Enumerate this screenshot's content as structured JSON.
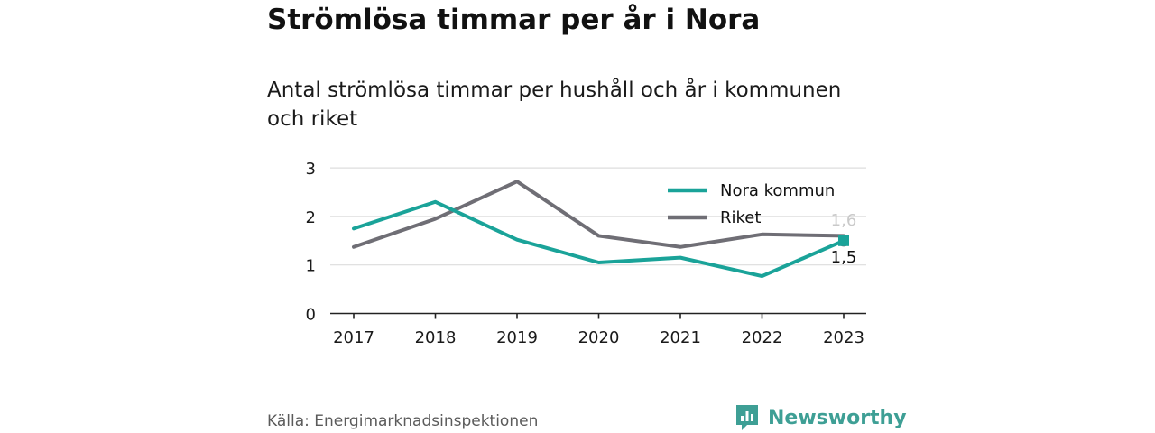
{
  "title": "Strömlösa timmar per år i Nora",
  "subtitle": "Antal strömlösa timmar per hushåll och år i kommunen och riket",
  "source": "Källa: Energimarknadsinspektionen",
  "brand": {
    "name": "Newsworthy",
    "icon": "newsworthy-logo-icon",
    "color": "#3e9f95"
  },
  "colors": {
    "nora": "#1aa399",
    "riket": "#6f6e75",
    "grid": "#dddddd",
    "axis": "#222222"
  },
  "chart_data": {
    "type": "line",
    "x": [
      "2017",
      "2018",
      "2019",
      "2020",
      "2021",
      "2022",
      "2023"
    ],
    "ylim": [
      0,
      3
    ],
    "yticks": [
      "0",
      "1",
      "2",
      "3"
    ],
    "grid": true,
    "legend_position": "top-right",
    "series": [
      {
        "name": "Nora kommun",
        "color": "#1aa399",
        "values": [
          1.75,
          2.3,
          1.52,
          1.05,
          1.15,
          0.77,
          1.5
        ],
        "end_label": "1,5"
      },
      {
        "name": "Riket",
        "color": "#6f6e75",
        "values": [
          1.37,
          1.95,
          2.72,
          1.6,
          1.37,
          1.63,
          1.6
        ],
        "end_label": "1,6"
      }
    ]
  }
}
